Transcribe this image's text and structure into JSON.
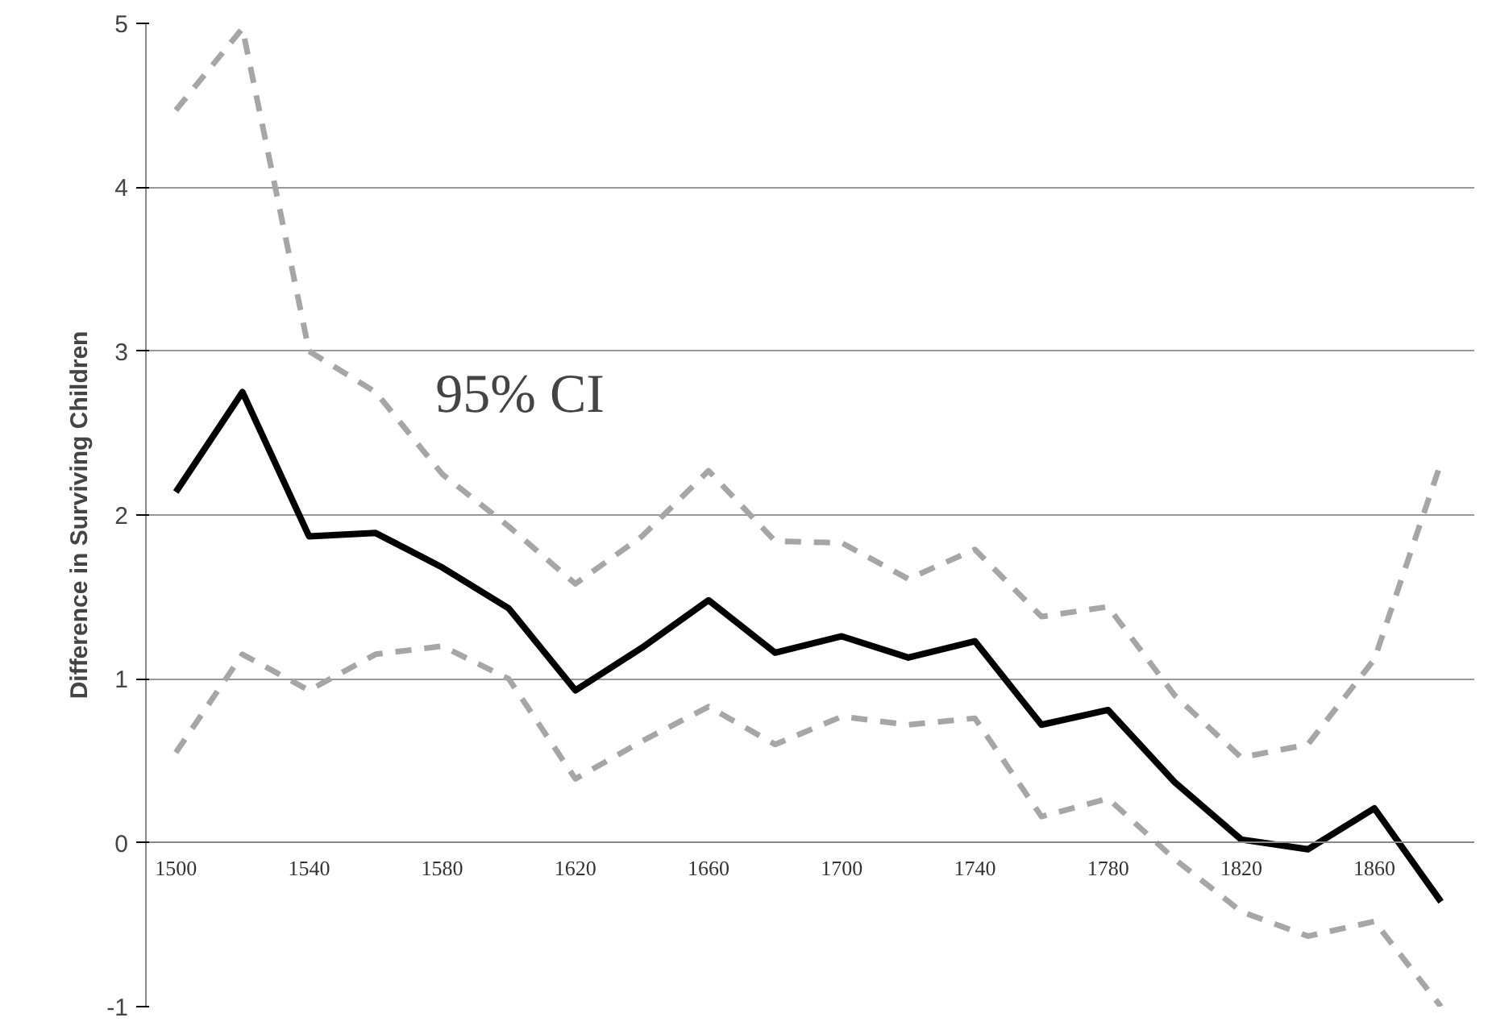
{
  "chart_data": {
    "type": "line",
    "ylabel": "Difference in Surviving Children",
    "categories": [
      "1500",
      null,
      "1540",
      null,
      "1580",
      null,
      "1620",
      null,
      "1660",
      null,
      "1700",
      null,
      "1740",
      null,
      "1780",
      null,
      "1820",
      null,
      "1860",
      null
    ],
    "series": [
      {
        "color": "#000000",
        "line_style": "solid",
        "values": [
          2.14,
          2.75,
          1.87,
          1.89,
          1.68,
          1.43,
          0.93,
          1.19,
          1.48,
          1.16,
          1.26,
          1.13,
          1.23,
          0.72,
          0.81,
          0.37,
          0.02,
          -0.04,
          0.21,
          -0.36
        ]
      },
      {
        "color": "#a6a6a6",
        "line_style": "dashed",
        "values": [
          4.47,
          4.97,
          3.0,
          2.75,
          2.25,
          1.93,
          1.58,
          1.87,
          2.27,
          1.84,
          1.83,
          1.61,
          1.79,
          1.38,
          1.44,
          0.9,
          0.52,
          0.6,
          1.12,
          2.32
        ]
      },
      {
        "color": "#a6a6a6",
        "line_style": "dashed",
        "values": [
          0.55,
          1.15,
          0.93,
          1.15,
          1.2,
          1.0,
          0.39,
          0.62,
          0.83,
          0.6,
          0.77,
          0.72,
          0.76,
          0.16,
          0.27,
          -0.1,
          -0.42,
          -0.57,
          -0.48,
          -1.0
        ]
      }
    ],
    "ylim": [
      -1,
      5
    ],
    "yticks": [
      -1,
      0,
      1,
      2,
      3,
      4,
      5
    ],
    "grid": "y",
    "marker": "none",
    "annotations": [
      "95% CI"
    ]
  }
}
